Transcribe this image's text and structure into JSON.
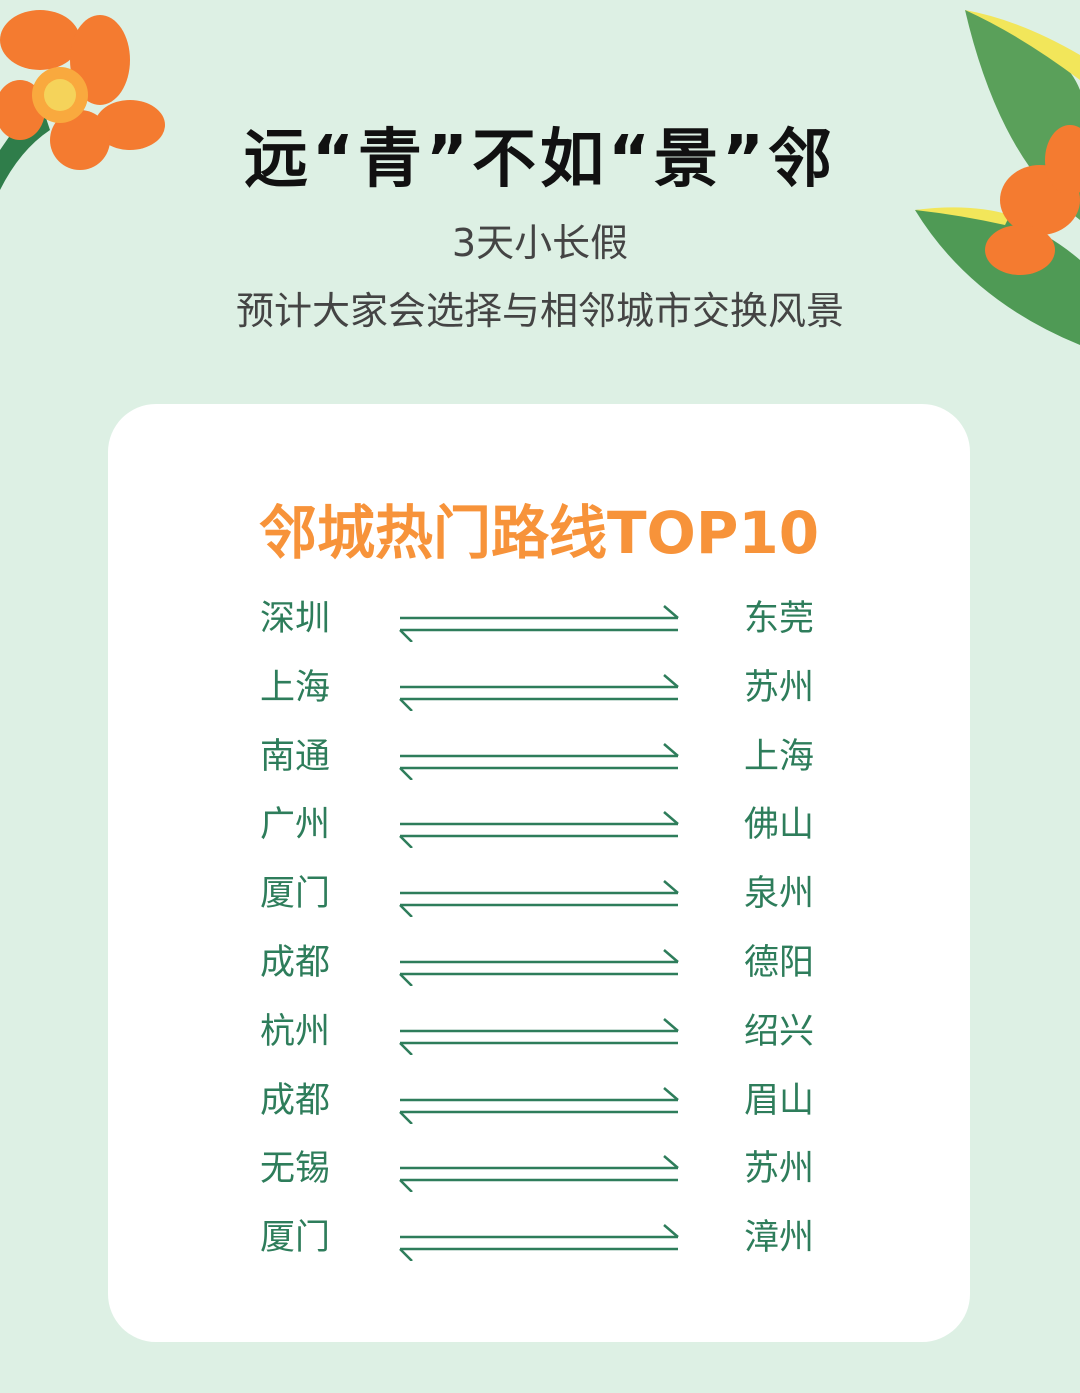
{
  "header": {
    "title": "远“青”不如“景”邻",
    "subtitle_1": "3天小长假",
    "subtitle_2": "预计大家会选择与相邻城市交换风景"
  },
  "card": {
    "title": "邻城热门路线TOP10",
    "routes": [
      {
        "from": "深圳",
        "to": "东莞"
      },
      {
        "from": "上海",
        "to": "苏州"
      },
      {
        "from": "南通",
        "to": "上海"
      },
      {
        "from": "广州",
        "to": "佛山"
      },
      {
        "from": "厦门",
        "to": "泉州"
      },
      {
        "from": "成都",
        "to": "德阳"
      },
      {
        "from": "杭州",
        "to": "绍兴"
      },
      {
        "from": "成都",
        "to": "眉山"
      },
      {
        "from": "无锡",
        "to": "苏州"
      },
      {
        "from": "厦门",
        "to": "漳州"
      }
    ]
  },
  "colors": {
    "background": "#ddf0e4",
    "accent": "#f7933a",
    "route_text": "#2e7d5b"
  },
  "icons": [
    "flower-decoration",
    "leaf-decoration",
    "two-way-arrow-icon"
  ]
}
